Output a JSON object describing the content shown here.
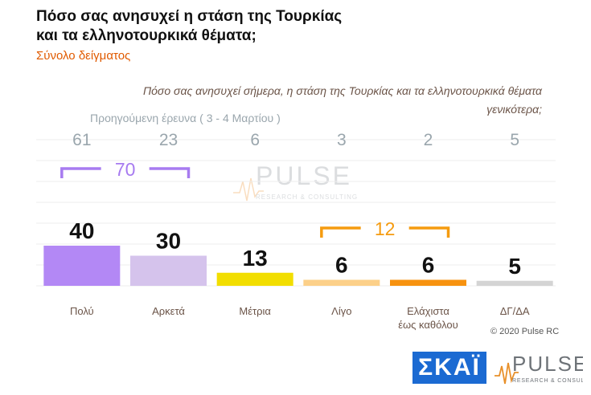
{
  "header": {
    "title_line1": "Πόσο σας ανησυχεί η στάση της Τουρκίας",
    "title_line2": "και τα ελληνοτουρκικά θέματα;",
    "subtitle": "Σύνολο δείγματος"
  },
  "question": {
    "line1": "Πόσο σας ανησυχεί σήμερα, η στάση της Τουρκίας και τα ελληνοτουρκικά θέματα",
    "line2": "γενικότερα;"
  },
  "previous_survey_label": "Προηγούμενη έρευνα   ( 3 - 4 Μαρτίου )",
  "chart_data": {
    "type": "bar",
    "categories": [
      "Πολύ",
      "Αρκετά",
      "Μέτρια",
      "Λίγο",
      "Ελάχιστα έως καθόλου",
      "ΔΓ/ΔΑ"
    ],
    "category_lines": [
      [
        "Πολύ"
      ],
      [
        "Αρκετά"
      ],
      [
        "Μέτρια"
      ],
      [
        "Λίγο"
      ],
      [
        "Ελάχιστα",
        "έως καθόλου"
      ],
      [
        "ΔΓ/ΔΑ"
      ]
    ],
    "values": [
      40,
      30,
      13,
      6,
      6,
      5
    ],
    "previous_values": [
      61,
      23,
      6,
      3,
      2,
      5
    ],
    "bar_colors": [
      "#b388f5",
      "#d5c3ec",
      "#f2de00",
      "#fcd089",
      "#f7920f",
      "#d4d4d4"
    ],
    "groups": [
      {
        "label": "70",
        "from": 0,
        "to": 1,
        "color": "#a77bf0"
      },
      {
        "label": "12",
        "from": 3,
        "to": 4,
        "color": "#f59b0f"
      }
    ],
    "ylim": [
      0,
      100
    ],
    "grid": true
  },
  "footer": {
    "copyright": "© 2020 Pulse RC",
    "skai_logo": "ΣΚΑΪ",
    "pulse_logo": "PULSE",
    "pulse_tagline": "RESEARCH & CONSULTING"
  }
}
